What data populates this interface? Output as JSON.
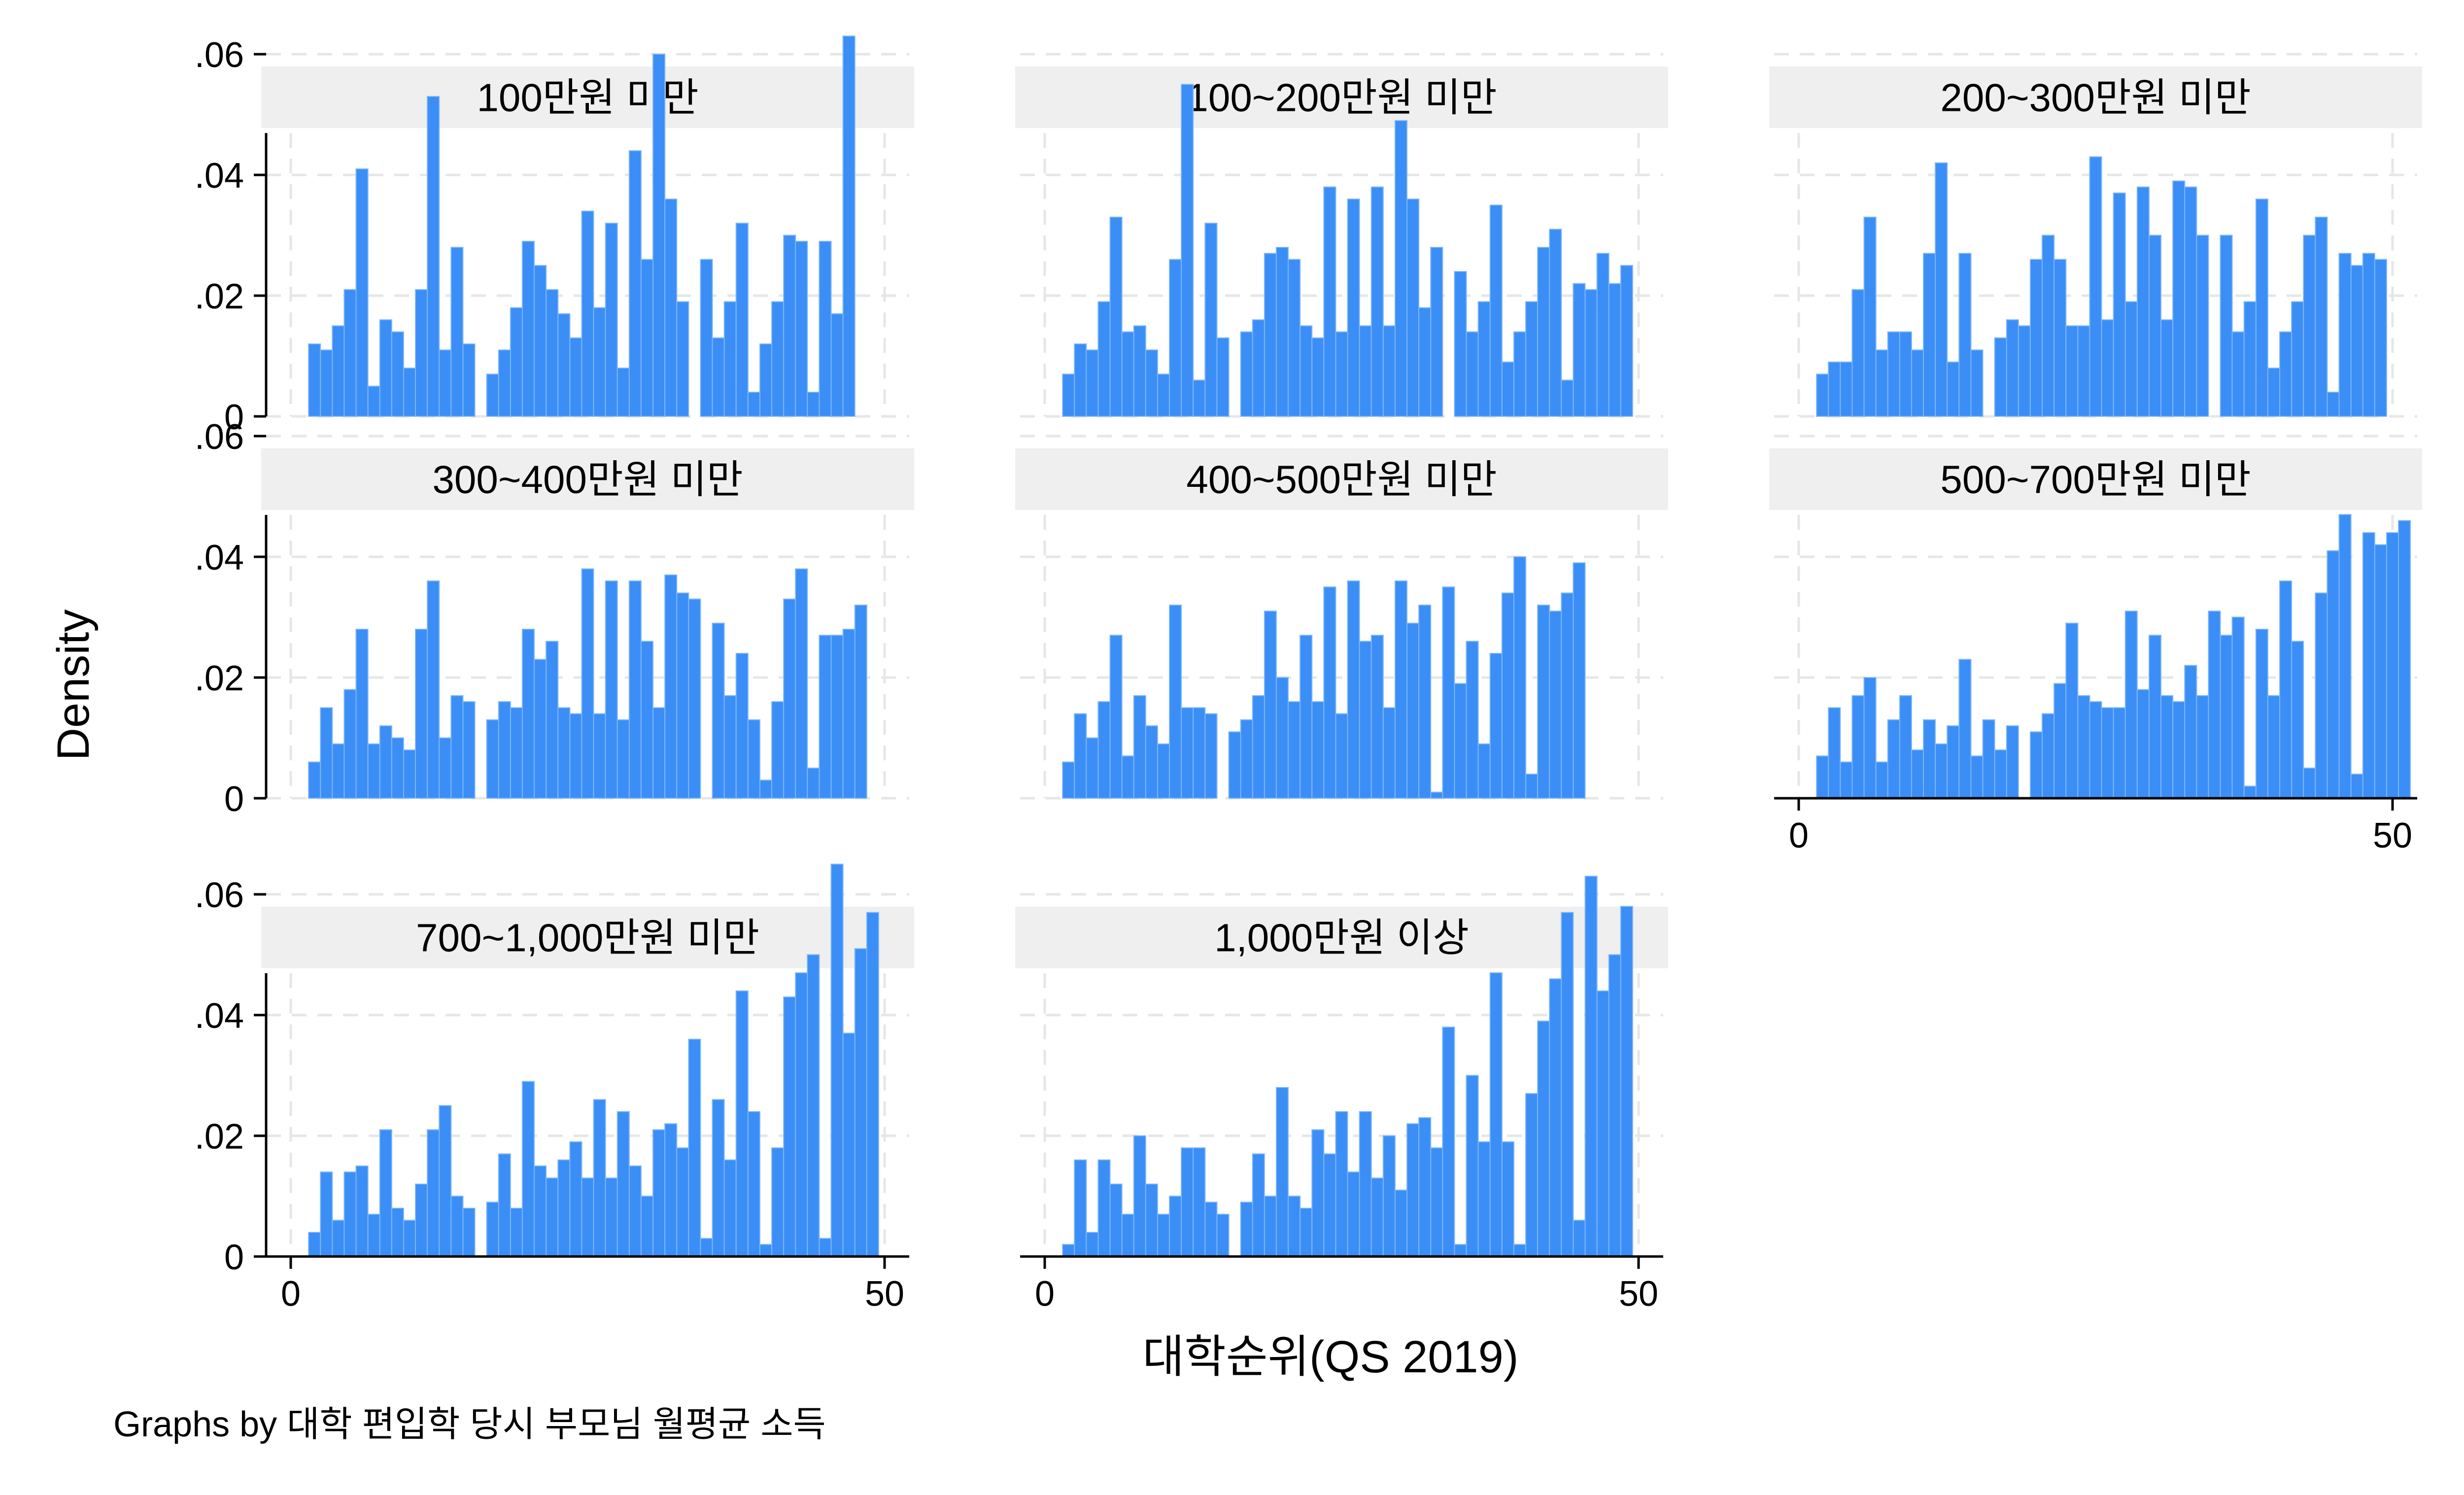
{
  "chart_data": {
    "type": "bar",
    "ylabel": "Density",
    "xlabel": "대학순위(QS 2019)",
    "note": "Graphs by 대학 편입학 당시 부모님 월평균 소득",
    "xlim": [
      0,
      50
    ],
    "ylim": [
      0,
      0.07
    ],
    "grid": true,
    "bin_width": 1,
    "x_start": 2,
    "y_ticks": [
      {
        "value": 0,
        "label": "0"
      },
      {
        "value": 0.02,
        "label": ".02"
      },
      {
        "value": 0.04,
        "label": ".04"
      },
      {
        "value": 0.06,
        "label": ".06"
      }
    ],
    "x_ticks": [
      {
        "value": 0,
        "label": "0"
      },
      {
        "value": 50,
        "label": "50"
      }
    ],
    "bar_color": "#3a8ef6",
    "strip_color": "#efefef",
    "panels": [
      {
        "title": "100만원 미만",
        "values": [
          0.012,
          0.011,
          0.015,
          0.021,
          0.041,
          0.005,
          0.016,
          0.014,
          0.008,
          0.021,
          0.053,
          0.011,
          0.028,
          0.012,
          0,
          0.007,
          0.011,
          0.018,
          0.029,
          0.025,
          0.021,
          0.017,
          0.013,
          0.034,
          0.018,
          0.032,
          0.008,
          0.044,
          0.026,
          0.06,
          0.036,
          0.019,
          0,
          0.026,
          0.013,
          0.019,
          0.032,
          0.004,
          0.012,
          0.019,
          0.03,
          0.029,
          0.004,
          0.029,
          0.017,
          0.063
        ]
      },
      {
        "title": "100~200만원 미만",
        "values": [
          0.007,
          0.012,
          0.011,
          0.019,
          0.033,
          0.014,
          0.015,
          0.011,
          0.007,
          0.026,
          0.055,
          0.006,
          0.032,
          0.013,
          0,
          0.014,
          0.016,
          0.027,
          0.028,
          0.026,
          0.015,
          0.013,
          0.038,
          0.014,
          0.036,
          0.015,
          0.038,
          0.015,
          0.049,
          0.036,
          0.018,
          0.028,
          0,
          0.024,
          0.014,
          0.019,
          0.035,
          0.009,
          0.014,
          0.019,
          0.028,
          0.031,
          0.006,
          0.022,
          0.021,
          0.027,
          0.022,
          0.025
        ]
      },
      {
        "title": "200~300만원 미만",
        "values": [
          0.007,
          0.009,
          0.009,
          0.021,
          0.033,
          0.011,
          0.014,
          0.014,
          0.011,
          0.027,
          0.042,
          0.009,
          0.027,
          0.011,
          0,
          0.013,
          0.016,
          0.015,
          0.026,
          0.03,
          0.026,
          0.015,
          0.015,
          0.043,
          0.016,
          0.037,
          0.019,
          0.038,
          0.03,
          0.016,
          0.039,
          0.038,
          0.03,
          0,
          0.03,
          0.014,
          0.019,
          0.036,
          0.008,
          0.014,
          0.019,
          0.03,
          0.033,
          0.004,
          0.027,
          0.025,
          0.027,
          0.026
        ]
      },
      {
        "title": "300~400만원 미만",
        "values": [
          0.006,
          0.015,
          0.009,
          0.018,
          0.028,
          0.009,
          0.012,
          0.01,
          0.008,
          0.028,
          0.036,
          0.01,
          0.017,
          0.016,
          0,
          0.013,
          0.016,
          0.015,
          0.028,
          0.023,
          0.026,
          0.015,
          0.014,
          0.038,
          0.014,
          0.036,
          0.013,
          0.036,
          0.026,
          0.015,
          0.037,
          0.034,
          0.033,
          0,
          0.029,
          0.017,
          0.024,
          0.013,
          0.003,
          0.016,
          0.033,
          0.038,
          0.005,
          0.027,
          0.027,
          0.028,
          0.032
        ]
      },
      {
        "title": "400~500만원 미만",
        "values": [
          0.006,
          0.014,
          0.01,
          0.016,
          0.027,
          0.007,
          0.017,
          0.012,
          0.009,
          0.032,
          0.015,
          0.015,
          0.014,
          0,
          0.011,
          0.013,
          0.017,
          0.031,
          0.02,
          0.016,
          0.027,
          0.016,
          0.035,
          0.014,
          0.036,
          0.026,
          0.027,
          0.015,
          0.036,
          0.029,
          0.032,
          0.001,
          0.035,
          0.019,
          0.026,
          0.009,
          0.024,
          0.034,
          0.04,
          0.004,
          0.032,
          0.031,
          0.034,
          0.039
        ]
      },
      {
        "title": "500~700만원 미만",
        "values": [
          0.007,
          0.015,
          0.006,
          0.017,
          0.02,
          0.006,
          0.013,
          0.017,
          0.008,
          0.013,
          0.009,
          0.012,
          0.023,
          0.007,
          0.013,
          0.008,
          0.012,
          0,
          0.011,
          0.014,
          0.019,
          0.029,
          0.017,
          0.016,
          0.015,
          0.015,
          0.031,
          0.018,
          0.027,
          0.017,
          0.016,
          0.022,
          0.017,
          0.031,
          0.027,
          0.03,
          0.002,
          0.028,
          0.017,
          0.036,
          0.026,
          0.005,
          0.034,
          0.041,
          0.047,
          0.004,
          0.044,
          0.042,
          0.044,
          0.046
        ]
      },
      {
        "title": "700~1,000만원 미만",
        "values": [
          0.004,
          0.014,
          0.006,
          0.014,
          0.015,
          0.007,
          0.021,
          0.008,
          0.006,
          0.012,
          0.021,
          0.025,
          0.01,
          0.008,
          0,
          0.009,
          0.017,
          0.008,
          0.029,
          0.015,
          0.013,
          0.016,
          0.019,
          0.013,
          0.026,
          0.013,
          0.024,
          0.015,
          0.01,
          0.021,
          0.022,
          0.018,
          0.036,
          0.003,
          0.026,
          0.016,
          0.044,
          0.024,
          0.002,
          0.018,
          0.043,
          0.047,
          0.05,
          0.003,
          0.065,
          0.037,
          0.051,
          0.057
        ]
      },
      {
        "title": "1,000만원 이상",
        "values": [
          0.002,
          0.016,
          0.004,
          0.016,
          0.012,
          0.007,
          0.02,
          0.012,
          0.007,
          0.01,
          0.018,
          0.018,
          0.009,
          0.007,
          0,
          0.009,
          0.017,
          0.01,
          0.028,
          0.01,
          0.008,
          0.021,
          0.017,
          0.024,
          0.014,
          0.024,
          0.013,
          0.02,
          0.011,
          0.022,
          0.023,
          0.018,
          0.038,
          0.002,
          0.03,
          0.019,
          0.047,
          0.019,
          0.002,
          0.027,
          0.039,
          0.046,
          0.057,
          0.006,
          0.063,
          0.044,
          0.05,
          0.058
        ]
      }
    ]
  }
}
